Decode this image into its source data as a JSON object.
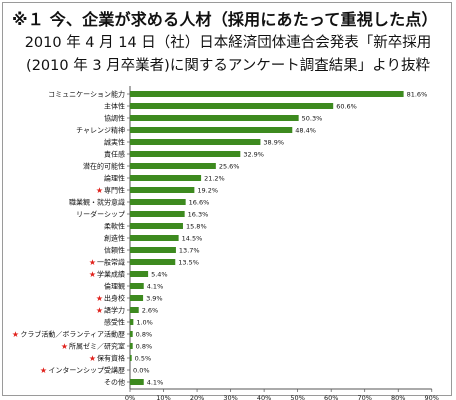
{
  "header": {
    "title": "※１ 今、企業が求める人材（採用にあたって重視した点）",
    "subtitle_line1": "2010 年 4 月 14 日（社）日本経済団体連合会発表「新卒採用",
    "subtitle_line2": "(2010 年 3 月卒業者)に関するアンケート調査結果」より抜粋"
  },
  "colors": {
    "bar": "#3d8a1f",
    "star": "#e0201a",
    "text": "#111111",
    "axis": "#555555"
  },
  "chart_data": {
    "type": "bar",
    "orientation": "horizontal",
    "categories": [
      "コミュニケーション能力",
      "主体性",
      "協調性",
      "チャレンジ精神",
      "誠実性",
      "責任感",
      "潜在的可能性",
      "論理性",
      "専門性",
      "職業観・就労意識",
      "リーダーシップ",
      "柔軟性",
      "創造性",
      "信頼性",
      "一般常識",
      "学業成績",
      "倫理観",
      "出身校",
      "語学力",
      "感受性",
      "クラブ活動／ボランティア活動歴",
      "所属ゼミ／研究室",
      "保有資格",
      "インターンシップ受講歴",
      "その他"
    ],
    "values": [
      81.6,
      60.6,
      50.3,
      48.4,
      38.9,
      32.9,
      25.6,
      21.2,
      19.2,
      16.6,
      16.3,
      15.8,
      14.5,
      13.7,
      13.5,
      5.4,
      4.1,
      3.9,
      2.6,
      1.0,
      0.8,
      0.8,
      0.5,
      0.0,
      4.1
    ],
    "value_labels": [
      "81.6%",
      "60.6%",
      "50.3%",
      "48.4%",
      "38.9%",
      "32.9%",
      "25.6%",
      "21.2%",
      "19.2%",
      "16.6%",
      "16.3%",
      "15.8%",
      "14.5%",
      "13.7%",
      "13.5%",
      "5.4%",
      "4.1%",
      "3.9%",
      "2.6%",
      "1.0%",
      "0.8%",
      "0.8%",
      "0.5%",
      "0.0%",
      "4.1%"
    ],
    "starred": [
      false,
      false,
      false,
      false,
      false,
      false,
      false,
      false,
      true,
      false,
      false,
      false,
      false,
      false,
      true,
      true,
      false,
      true,
      true,
      false,
      true,
      true,
      true,
      true,
      false
    ],
    "star_glyph": "★",
    "xlim": [
      0,
      90
    ],
    "xticks": [
      "0%",
      "10%",
      "20%",
      "30%",
      "40%",
      "50%",
      "60%",
      "70%",
      "80%",
      "90%"
    ],
    "grid": false
  }
}
